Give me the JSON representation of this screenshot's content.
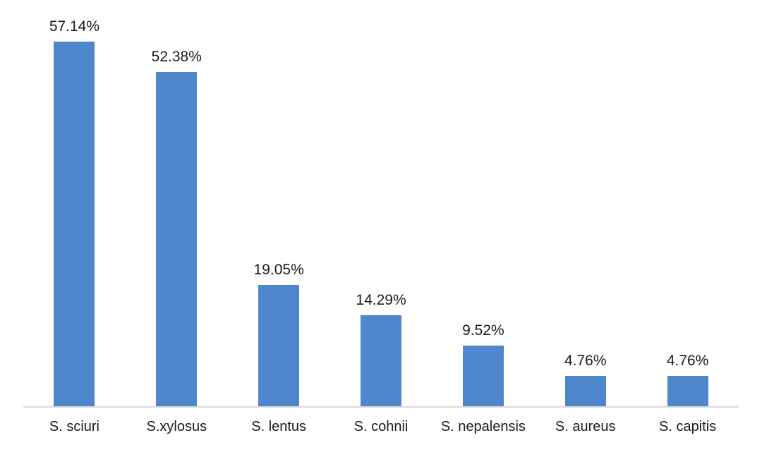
{
  "chart_data": {
    "type": "bar",
    "categories": [
      "S. sciuri",
      "S.xylosus",
      "S. lentus",
      "S. cohnii",
      "S. nepalensis",
      "S. aureus",
      "S. capitis"
    ],
    "values": [
      57.14,
      52.38,
      19.05,
      14.29,
      9.52,
      4.76,
      4.76
    ],
    "data_labels": [
      "57.14%",
      "52.38%",
      "19.05%",
      "14.29%",
      "9.52%",
      "4.76%",
      "4.76%"
    ],
    "title": "",
    "xlabel": "",
    "ylabel": "",
    "ylim": [
      0,
      60
    ],
    "grid": false,
    "legend": false,
    "layout": {
      "bar_color": "#4E87CB",
      "axis_line_color": "#D9D9D9",
      "text_color": "#1A1A1A",
      "data_labels_position": "above-bars",
      "y_axis_visible": false
    }
  }
}
